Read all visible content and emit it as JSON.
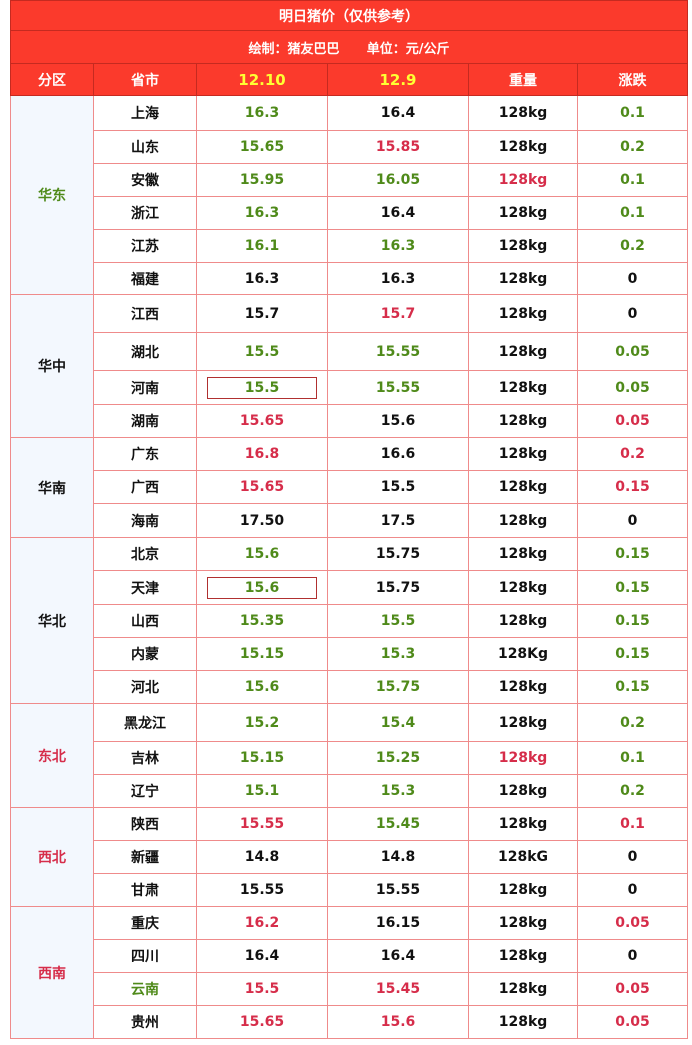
{
  "title": "明日猪价（仅供参考）",
  "subtitle": "绘制：猪友巴巴      单位：元/公斤",
  "headers": [
    "分区",
    "省市",
    "12.10",
    "12.9",
    "重量",
    "涨跌"
  ],
  "colors": {
    "header_bg": "#fb3a2c",
    "green": "#4f8a1a",
    "red": "#d62d4a",
    "dark": "#111111",
    "region_bg": "#f3f8fe"
  },
  "groups": [
    {
      "region": "华东",
      "region_color": "green",
      "rows": [
        {
          "province": "上海",
          "d1": "16.3",
          "d2": "16.4",
          "weight": "128kg",
          "change": "0.1",
          "c": [
            "dark",
            "green",
            "dark",
            "dark",
            "green"
          ],
          "h": 35
        },
        {
          "province": "山东",
          "d1": "15.65",
          "d2": "15.85",
          "weight": "128kg",
          "change": "0.2",
          "c": [
            "dark",
            "green",
            "red",
            "dark",
            "green"
          ],
          "h": 33
        },
        {
          "province": "安徽",
          "d1": "15.95",
          "d2": "16.05",
          "weight": "128kg",
          "change": "0.1",
          "c": [
            "dark",
            "green",
            "green",
            "red",
            "green"
          ],
          "h": 33
        },
        {
          "province": "浙江",
          "d1": "16.3",
          "d2": "16.4",
          "weight": "128kg",
          "change": "0.1",
          "c": [
            "dark",
            "green",
            "dark",
            "dark",
            "green"
          ],
          "h": 33
        },
        {
          "province": "江苏",
          "d1": "16.1",
          "d2": "16.3",
          "weight": "128kg",
          "change": "0.2",
          "c": [
            "dark",
            "green",
            "green",
            "dark",
            "green"
          ],
          "h": 33
        },
        {
          "province": "福建",
          "d1": "16.3",
          "d2": "16.3",
          "weight": "128kg",
          "change": "0",
          "c": [
            "dark",
            "dark",
            "dark",
            "dark",
            "dark"
          ],
          "h": 32
        }
      ]
    },
    {
      "region": "华中",
      "region_color": "dark",
      "rows": [
        {
          "province": "江西",
          "d1": "15.7",
          "d2": "15.7",
          "weight": "128kg",
          "change": "0",
          "c": [
            "dark",
            "dark",
            "red",
            "dark",
            "dark"
          ],
          "h": 38
        },
        {
          "province": "湖北",
          "d1": "15.5",
          "d2": "15.55",
          "weight": "128kg",
          "change": "0.05",
          "c": [
            "dark",
            "green",
            "green",
            "dark",
            "green"
          ],
          "h": 38
        },
        {
          "province": "河南",
          "d1": "15.5",
          "d2": "15.55",
          "weight": "128kg",
          "change": "0.05",
          "c": [
            "dark",
            "green",
            "green",
            "dark",
            "green"
          ],
          "h": 34,
          "boxed": true
        },
        {
          "province": "湖南",
          "d1": "15.65",
          "d2": "15.6",
          "weight": "128kg",
          "change": "0.05",
          "c": [
            "dark",
            "red",
            "dark",
            "dark",
            "red"
          ],
          "h": 33
        }
      ]
    },
    {
      "region": "华南",
      "region_color": "dark",
      "rows": [
        {
          "province": "广东",
          "d1": "16.8",
          "d2": "16.6",
          "weight": "128kg",
          "change": "0.2",
          "c": [
            "dark",
            "red",
            "dark",
            "dark",
            "red"
          ],
          "h": 33
        },
        {
          "province": "广西",
          "d1": "15.65",
          "d2": "15.5",
          "weight": "128kg",
          "change": "0.15",
          "c": [
            "dark",
            "red",
            "dark",
            "dark",
            "red"
          ],
          "h": 33
        },
        {
          "province": "海南",
          "d1": "17.50",
          "d2": "17.5",
          "weight": "128kg",
          "change": "0",
          "c": [
            "dark",
            "dark",
            "dark",
            "dark",
            "dark"
          ],
          "h": 34
        }
      ]
    },
    {
      "region": "华北",
      "region_color": "dark",
      "rows": [
        {
          "province": "北京",
          "d1": "15.6",
          "d2": "15.75",
          "weight": "128kg",
          "change": "0.15",
          "c": [
            "dark",
            "green",
            "dark",
            "dark",
            "green"
          ],
          "h": 33
        },
        {
          "province": "天津",
          "d1": "15.6",
          "d2": "15.75",
          "weight": "128kg",
          "change": "0.15",
          "c": [
            "dark",
            "green",
            "dark",
            "dark",
            "green"
          ],
          "h": 34,
          "boxed": true
        },
        {
          "province": "山西",
          "d1": "15.35",
          "d2": "15.5",
          "weight": "128kg",
          "change": "0.15",
          "c": [
            "dark",
            "green",
            "green",
            "dark",
            "green"
          ],
          "h": 33
        },
        {
          "province": "内蒙",
          "d1": "15.15",
          "d2": "15.3",
          "weight": "128Kg",
          "change": "0.15",
          "c": [
            "dark",
            "green",
            "green",
            "dark",
            "green"
          ],
          "h": 33
        },
        {
          "province": "河北",
          "d1": "15.6",
          "d2": "15.75",
          "weight": "128kg",
          "change": "0.15",
          "c": [
            "dark",
            "green",
            "green",
            "dark",
            "green"
          ],
          "h": 33
        }
      ]
    },
    {
      "region": "东北",
      "region_color": "red",
      "rows": [
        {
          "province": "黑龙江",
          "d1": "15.2",
          "d2": "15.4",
          "weight": "128kg",
          "change": "0.2",
          "c": [
            "dark",
            "green",
            "green",
            "dark",
            "green"
          ],
          "h": 38
        },
        {
          "province": "吉林",
          "d1": "15.15",
          "d2": "15.25",
          "weight": "128kg",
          "change": "0.1",
          "c": [
            "dark",
            "green",
            "green",
            "red",
            "green"
          ],
          "h": 33
        },
        {
          "province": "辽宁",
          "d1": "15.1",
          "d2": "15.3",
          "weight": "128kg",
          "change": "0.2",
          "c": [
            "dark",
            "green",
            "green",
            "dark",
            "green"
          ],
          "h": 33
        }
      ]
    },
    {
      "region": "西北",
      "region_color": "red",
      "rows": [
        {
          "province": "陕西",
          "d1": "15.55",
          "d2": "15.45",
          "weight": "128kg",
          "change": "0.1",
          "c": [
            "dark",
            "red",
            "green",
            "dark",
            "red"
          ],
          "h": 33
        },
        {
          "province": "新疆",
          "d1": "14.8",
          "d2": "14.8",
          "weight": "128kG",
          "change": "0",
          "c": [
            "dark",
            "dark",
            "dark",
            "dark",
            "dark"
          ],
          "h": 33
        },
        {
          "province": "甘肃",
          "d1": "15.55",
          "d2": "15.55",
          "weight": "128kg",
          "change": "0",
          "c": [
            "dark",
            "dark",
            "dark",
            "dark",
            "dark"
          ],
          "h": 33
        }
      ]
    },
    {
      "region": "西南",
      "region_color": "red",
      "rows": [
        {
          "province": "重庆",
          "d1": "16.2",
          "d2": "16.15",
          "weight": "128kg",
          "change": "0.05",
          "c": [
            "dark",
            "red",
            "dark",
            "dark",
            "red"
          ],
          "h": 33
        },
        {
          "province": "四川",
          "d1": "16.4",
          "d2": "16.4",
          "weight": "128kg",
          "change": "0",
          "c": [
            "dark",
            "dark",
            "dark",
            "dark",
            "dark"
          ],
          "h": 33
        },
        {
          "province": "云南",
          "d1": "15.5",
          "d2": "15.45",
          "weight": "128kg",
          "change": "0.05",
          "c": [
            "green",
            "red",
            "red",
            "dark",
            "red"
          ],
          "h": 33
        },
        {
          "province": "贵州",
          "d1": "15.65",
          "d2": "15.6",
          "weight": "128kg",
          "change": "0.05",
          "c": [
            "dark",
            "red",
            "red",
            "dark",
            "red"
          ],
          "h": 33
        }
      ]
    }
  ]
}
